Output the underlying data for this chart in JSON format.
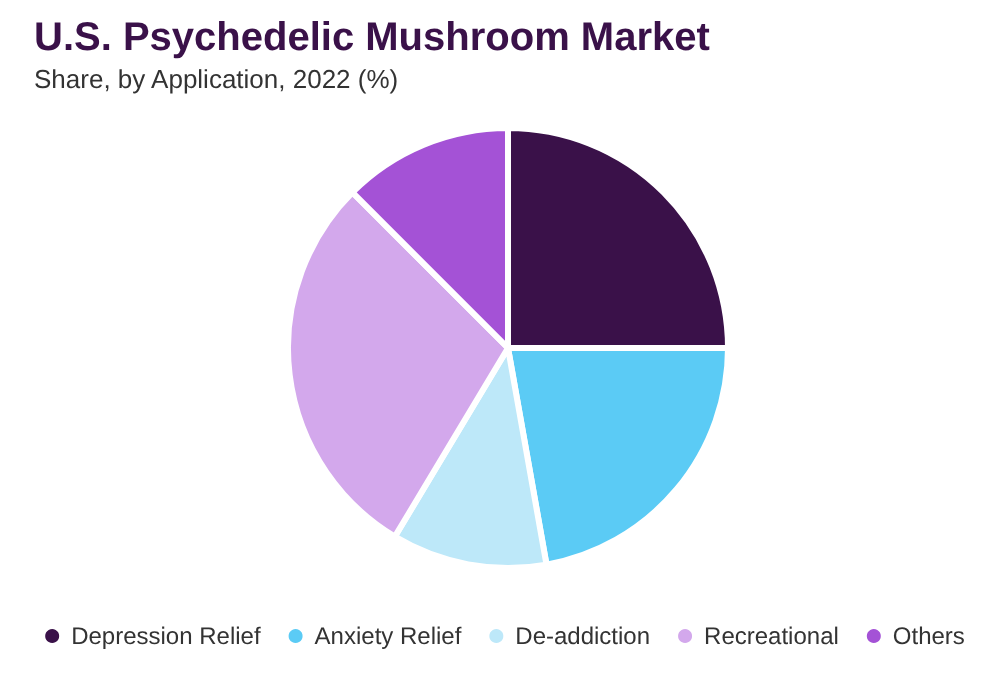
{
  "chart_data": {
    "type": "pie",
    "title": "U.S. Psychedelic Mushroom Market",
    "subtitle": "Share, by Application, 2022 (%)",
    "categories": [
      "Depression Relief",
      "Anxiety Relief",
      "De-addiction",
      "Recreational",
      "Others"
    ],
    "values": [
      25,
      22.2,
      11.4,
      28.9,
      12.5
    ],
    "colors": [
      "#3a1149",
      "#5bcbf5",
      "#bde8f9",
      "#d3a8ec",
      "#a452d6"
    ],
    "legend": "bottom"
  }
}
